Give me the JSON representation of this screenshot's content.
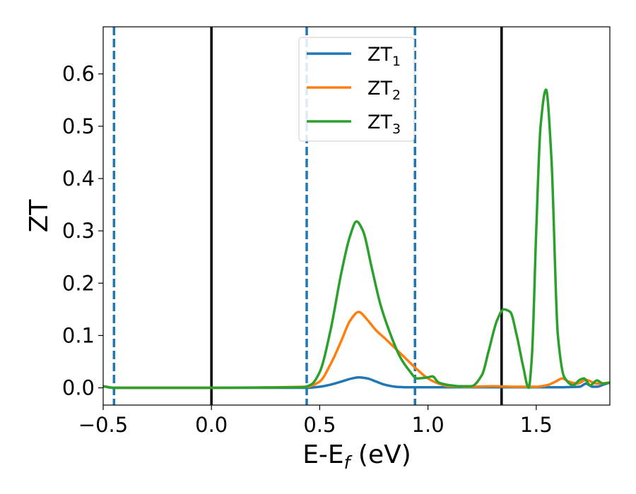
{
  "chart_data": {
    "type": "line",
    "title": "",
    "xlabel_main": "E-E",
    "xlabel_sub": "f",
    "xlabel_unit": " (eV)",
    "ylabel": "ZT",
    "xlim": [
      -0.5,
      1.84
    ],
    "ylim": [
      -0.033,
      0.69
    ],
    "x_ticks": [
      -0.5,
      0.0,
      0.5,
      1.0,
      1.5
    ],
    "x_tick_labels": [
      "−0.5",
      "0.0",
      "0.5",
      "1.0",
      "1.5"
    ],
    "y_ticks": [
      0.0,
      0.1,
      0.2,
      0.3,
      0.4,
      0.5,
      0.6
    ],
    "y_tick_labels": [
      "0.0",
      "0.1",
      "0.2",
      "0.3",
      "0.4",
      "0.5",
      "0.6"
    ],
    "grid": false,
    "legend_position": "top-center",
    "vertical_lines": [
      {
        "x": -0.45,
        "style": "dashed",
        "color": "#1f77b4"
      },
      {
        "x": 0.0,
        "style": "solid",
        "color": "#000000"
      },
      {
        "x": 0.44,
        "style": "dashed",
        "color": "#1f77b4"
      },
      {
        "x": 0.94,
        "style": "dashed",
        "color": "#1f77b4"
      },
      {
        "x": 1.34,
        "style": "solid",
        "color": "#000000"
      }
    ],
    "series": [
      {
        "name": "ZT",
        "sub": "1",
        "color": "#1f77b4",
        "x": [
          -0.5,
          -0.45,
          0.0,
          0.44,
          0.5,
          0.55,
          0.6,
          0.65,
          0.68,
          0.72,
          0.76,
          0.8,
          0.85,
          0.9,
          1.0,
          1.2,
          1.4,
          1.6,
          1.7,
          1.73,
          1.76,
          1.78,
          1.81,
          1.84
        ],
        "y": [
          0.003,
          0.0,
          0.0,
          0.0,
          0.002,
          0.006,
          0.012,
          0.018,
          0.02,
          0.018,
          0.012,
          0.006,
          0.002,
          0.001,
          0.001,
          0.001,
          0.001,
          0.001,
          0.002,
          0.008,
          0.002,
          0.002,
          0.006,
          0.01
        ]
      },
      {
        "name": "ZT",
        "sub": "2",
        "color": "#ff7f0e",
        "x": [
          -0.5,
          -0.45,
          0.0,
          0.44,
          0.5,
          0.55,
          0.6,
          0.64,
          0.68,
          0.72,
          0.76,
          0.8,
          0.85,
          0.9,
          0.95,
          1.0,
          1.05,
          1.1,
          1.2,
          1.3,
          1.4,
          1.5,
          1.55,
          1.59,
          1.62,
          1.65,
          1.69,
          1.73,
          1.78,
          1.84
        ],
        "y": [
          0.003,
          0.0,
          0.0,
          0.002,
          0.012,
          0.045,
          0.09,
          0.128,
          0.145,
          0.13,
          0.11,
          0.095,
          0.075,
          0.055,
          0.035,
          0.018,
          0.008,
          0.003,
          0.002,
          0.003,
          0.002,
          0.002,
          0.005,
          0.012,
          0.018,
          0.012,
          0.008,
          0.015,
          0.008,
          0.01
        ]
      },
      {
        "name": "ZT",
        "sub": "3",
        "color": "#2ca02c",
        "x": [
          -0.5,
          -0.45,
          0.0,
          0.42,
          0.46,
          0.5,
          0.55,
          0.6,
          0.64,
          0.67,
          0.7,
          0.74,
          0.78,
          0.82,
          0.87,
          0.91,
          0.95,
          1.0,
          1.02,
          1.05,
          1.1,
          1.15,
          1.2,
          1.25,
          1.28,
          1.32,
          1.35,
          1.38,
          1.41,
          1.44,
          1.465,
          1.48,
          1.5,
          1.52,
          1.545,
          1.57,
          1.6,
          1.63,
          1.67,
          1.7,
          1.72,
          1.75,
          1.78,
          1.81,
          1.84
        ],
        "y": [
          0.003,
          0.0,
          0.0,
          0.001,
          0.006,
          0.03,
          0.11,
          0.22,
          0.29,
          0.318,
          0.3,
          0.23,
          0.16,
          0.11,
          0.06,
          0.035,
          0.018,
          0.02,
          0.022,
          0.01,
          0.005,
          0.003,
          0.003,
          0.025,
          0.07,
          0.13,
          0.15,
          0.145,
          0.1,
          0.04,
          0.0,
          0.06,
          0.3,
          0.5,
          0.57,
          0.44,
          0.1,
          0.02,
          0.005,
          0.015,
          0.018,
          0.005,
          0.014,
          0.008,
          0.01
        ]
      }
    ]
  }
}
